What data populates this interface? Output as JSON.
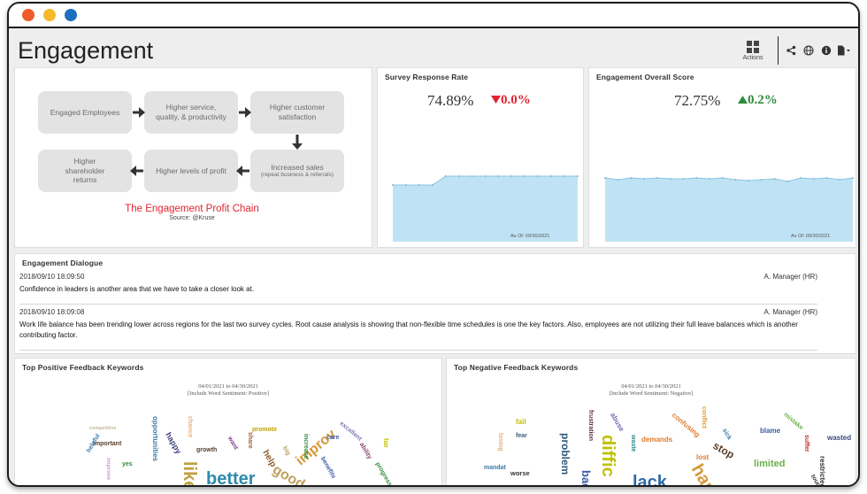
{
  "page": {
    "title": "Engagement"
  },
  "toolbar": {
    "actions_label": "Actions",
    "icons": [
      "share-icon",
      "globe-icon",
      "info-icon",
      "export-icon"
    ]
  },
  "profit_chain": {
    "boxes": [
      {
        "text": "Engaged Employees",
        "sub": ""
      },
      {
        "text": "Higher service, quality, & productivity",
        "sub": ""
      },
      {
        "text": "Higher customer satisfaction",
        "sub": ""
      },
      {
        "text": "Increased sales",
        "sub": "(repeat business & referrals)"
      },
      {
        "text": "Higher levels of profit",
        "sub": ""
      },
      {
        "text": "Higher shareholder returns",
        "sub": ""
      }
    ],
    "caption": "The Engagement Profit Chain",
    "source": "Source: @Kruse"
  },
  "survey": {
    "title": "Survey Response Rate",
    "value": "74.89%",
    "delta": "0.0%",
    "delta_direction": "down",
    "delta_color": "#e0242f",
    "as_of": "As Of: 09/30/2021"
  },
  "engagement_score": {
    "title": "Engagement Overall Score",
    "value": "72.75%",
    "delta": "0.2%",
    "delta_direction": "up",
    "delta_color": "#2e8b3a",
    "as_of": "As Of: 09/30/2021"
  },
  "dialogue": {
    "title": "Engagement Dialogue",
    "entries": [
      {
        "timestamp": "2018/09/10 18:09:50",
        "author": "A. Manager (HR)",
        "message": "Confidence in leaders is another area that we have to take a closer look at."
      },
      {
        "timestamp": "2018/09/10 18:09:08",
        "author": "A. Manager (HR)",
        "message": "Work life balance has been trending lower across regions for the last two survey cycles. Root cause analysis is showing that non-flexible time schedules is one the key factors. Also, employees are not utilizing their full leave balances which is another contributing factor."
      }
    ]
  },
  "positive_keywords": {
    "title": "Top Positive Feedback Keywords",
    "date_range": "04/01/2021 to 04/30/2021",
    "filter": "[Include Word Sentiment: Positive]",
    "words": [
      "competitive",
      "happy",
      "opportunities",
      "important",
      "helpful",
      "yes",
      "improve",
      "chance",
      "growth",
      "want",
      "promote",
      "share",
      "help",
      "good",
      "big",
      "improv",
      "increase",
      "care",
      "benefits",
      "excellent",
      "ability",
      "progress",
      "fair",
      "like",
      "better"
    ]
  },
  "negative_keywords": {
    "title": "Top Negative Feedback Keywords",
    "date_range": "04/01/2021 to 04/30/2021",
    "filter": "[Include Word Sentiment: Negative]",
    "words": [
      "fail",
      "fear",
      "losing",
      "worse",
      "mandat",
      "frustration",
      "problem",
      "bad",
      "abuse",
      "diffic",
      "waste",
      "demands",
      "confusing",
      "conflict",
      "lack",
      "lost",
      "stop",
      "hard",
      "blame",
      "sick",
      "limited",
      "mistake",
      "suffer",
      "wasted",
      "restricted",
      "tough"
    ]
  }
}
